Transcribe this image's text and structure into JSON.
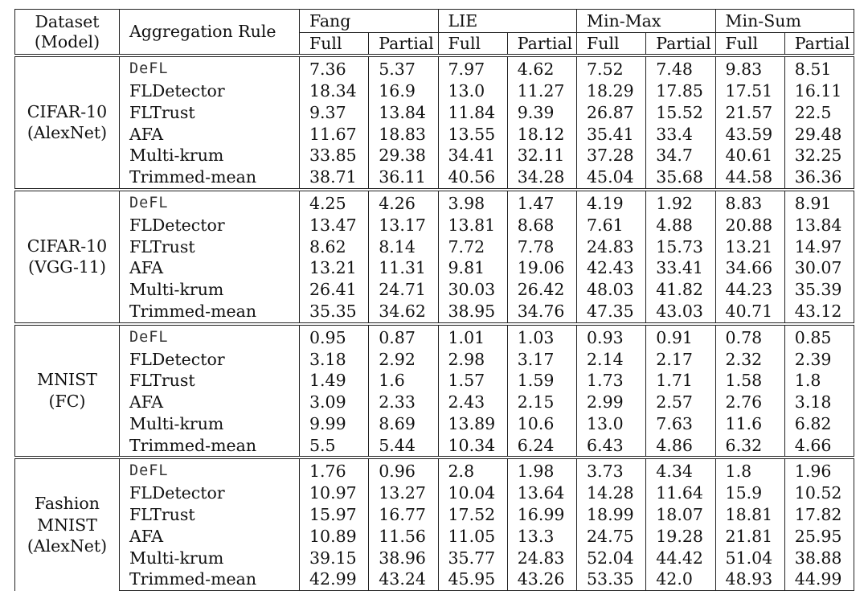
{
  "header": {
    "dataset_label": "Dataset",
    "model_label": "(Model)",
    "rule_label": "Aggregation Rule",
    "attacks": [
      "Fang",
      "LIE",
      "Min-Max",
      "Min-Sum"
    ],
    "sub_full": "Full",
    "sub_partial": "Partial"
  },
  "blocks": [
    {
      "dataset_lines": [
        "CIFAR-10",
        "(AlexNet)"
      ],
      "rows": [
        {
          "rule": "DeFL",
          "values": [
            "7.36",
            "5.37",
            "7.97",
            "4.62",
            "7.52",
            "7.48",
            "9.83",
            "8.51"
          ]
        },
        {
          "rule": "FLDetector",
          "values": [
            "18.34",
            "16.9",
            "13.0",
            "11.27",
            "18.29",
            "17.85",
            "17.51",
            "16.11"
          ]
        },
        {
          "rule": "FLTrust",
          "values": [
            "9.37",
            "13.84",
            "11.84",
            "9.39",
            "26.87",
            "15.52",
            "21.57",
            "22.5"
          ]
        },
        {
          "rule": "AFA",
          "values": [
            "11.67",
            "18.83",
            "13.55",
            "18.12",
            "35.41",
            "33.4",
            "43.59",
            "29.48"
          ]
        },
        {
          "rule": "Multi-krum",
          "values": [
            "33.85",
            "29.38",
            "34.41",
            "32.11",
            "37.28",
            "34.7",
            "40.61",
            "32.25"
          ]
        },
        {
          "rule": "Trimmed-mean",
          "values": [
            "38.71",
            "36.11",
            "40.56",
            "34.28",
            "45.04",
            "35.68",
            "44.58",
            "36.36"
          ]
        }
      ]
    },
    {
      "dataset_lines": [
        "CIFAR-10",
        "(VGG-11)"
      ],
      "rows": [
        {
          "rule": "DeFL",
          "values": [
            "4.25",
            "4.26",
            "3.98",
            "1.47",
            "4.19",
            "1.92",
            "8.83",
            "8.91"
          ]
        },
        {
          "rule": "FLDetector",
          "values": [
            "13.47",
            "13.17",
            "13.81",
            "8.68",
            "7.61",
            "4.88",
            "20.88",
            "13.84"
          ]
        },
        {
          "rule": "FLTrust",
          "values": [
            "8.62",
            "8.14",
            "7.72",
            "7.78",
            "24.83",
            "15.73",
            "13.21",
            "14.97"
          ]
        },
        {
          "rule": "AFA",
          "values": [
            "13.21",
            "11.31",
            "9.81",
            "19.06",
            "42.43",
            "33.41",
            "34.66",
            "30.07"
          ]
        },
        {
          "rule": "Multi-krum",
          "values": [
            "26.41",
            "24.71",
            "30.03",
            "26.42",
            "48.03",
            "41.82",
            "44.23",
            "35.39"
          ]
        },
        {
          "rule": "Trimmed-mean",
          "values": [
            "35.35",
            "34.62",
            "38.95",
            "34.76",
            "47.35",
            "43.03",
            "40.71",
            "43.12"
          ]
        }
      ]
    },
    {
      "dataset_lines": [
        "MNIST",
        "(FC)"
      ],
      "rows": [
        {
          "rule": "DeFL",
          "values": [
            "0.95",
            "0.87",
            "1.01",
            "1.03",
            "0.93",
            "0.91",
            "0.78",
            "0.85"
          ]
        },
        {
          "rule": "FLDetector",
          "values": [
            "3.18",
            "2.92",
            "2.98",
            "3.17",
            "2.14",
            "2.17",
            "2.32",
            "2.39"
          ]
        },
        {
          "rule": "FLTrust",
          "values": [
            "1.49",
            "1.6",
            "1.57",
            "1.59",
            "1.73",
            "1.71",
            "1.58",
            "1.8"
          ]
        },
        {
          "rule": "AFA",
          "values": [
            "3.09",
            "2.33",
            "2.43",
            "2.15",
            "2.99",
            "2.57",
            "2.76",
            "3.18"
          ]
        },
        {
          "rule": "Multi-krum",
          "values": [
            "9.99",
            "8.69",
            "13.89",
            "10.6",
            "13.0",
            "7.63",
            "11.6",
            "6.82"
          ]
        },
        {
          "rule": "Trimmed-mean",
          "values": [
            "5.5",
            "5.44",
            "10.34",
            "6.24",
            "6.43",
            "4.86",
            "6.32",
            "4.66"
          ]
        }
      ]
    },
    {
      "dataset_lines": [
        "Fashion",
        "MNIST",
        "(AlexNet)"
      ],
      "rows": [
        {
          "rule": "DeFL",
          "values": [
            "1.76",
            "0.96",
            "2.8",
            "1.98",
            "3.73",
            "4.34",
            "1.8",
            "1.96"
          ]
        },
        {
          "rule": "FLDetector",
          "values": [
            "10.97",
            "13.27",
            "10.04",
            "13.64",
            "14.28",
            "11.64",
            "15.9",
            "10.52"
          ]
        },
        {
          "rule": "FLTrust",
          "values": [
            "15.97",
            "16.77",
            "17.52",
            "16.99",
            "18.99",
            "18.07",
            "18.81",
            "17.82"
          ]
        },
        {
          "rule": "AFA",
          "values": [
            "10.89",
            "11.56",
            "11.05",
            "13.3",
            "24.75",
            "19.28",
            "21.81",
            "25.95"
          ]
        },
        {
          "rule": "Multi-krum",
          "values": [
            "39.15",
            "38.96",
            "35.77",
            "24.83",
            "52.04",
            "44.42",
            "51.04",
            "38.88"
          ]
        },
        {
          "rule": "Trimmed-mean",
          "values": [
            "42.99",
            "43.24",
            "45.95",
            "43.26",
            "53.35",
            "42.0",
            "48.93",
            "44.99"
          ]
        }
      ]
    }
  ]
}
